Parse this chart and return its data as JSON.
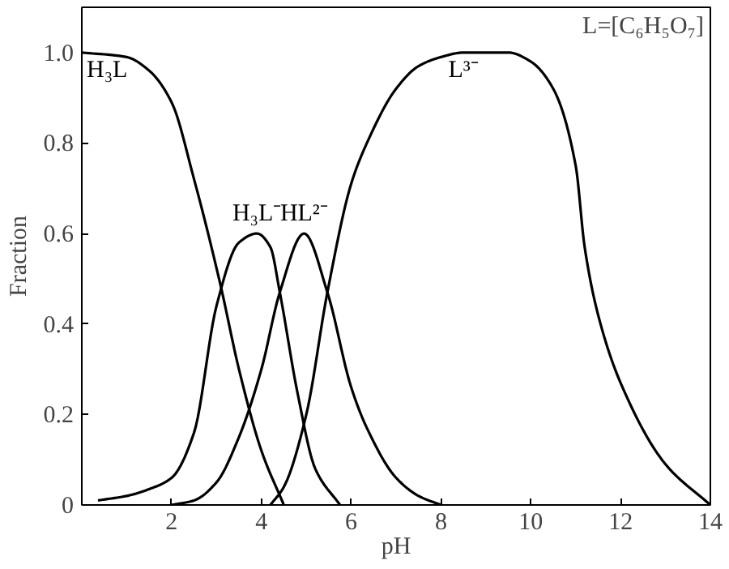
{
  "chart_data": {
    "type": "line",
    "xlabel": "pH",
    "ylabel": "Fraction",
    "xlim": [
      0,
      14
    ],
    "ylim": [
      0,
      1.1
    ],
    "xticks": [
      2,
      4,
      6,
      8,
      10,
      12,
      14
    ],
    "yticks": [
      0,
      0.2,
      0.4,
      0.6,
      0.8,
      {
        "value": 1.0,
        "label": "1.0"
      }
    ],
    "grid": false,
    "marker": "none",
    "line_style": "solid",
    "series": [
      {
        "name": "H₃L",
        "color": "#000000",
        "x": [
          0,
          1,
          1.5,
          2,
          2.5,
          3.08,
          3.5,
          4,
          4.5
        ],
        "values": [
          1.0,
          0.99,
          0.96,
          0.89,
          0.72,
          0.49,
          0.3,
          0.12,
          0
        ]
      },
      {
        "name": "H₃L⁻",
        "color": "#000000",
        "x": [
          0.36,
          1,
          1.5,
          2,
          2.5,
          3,
          3.5,
          3.9,
          4.2,
          4.41,
          4.8,
          5.2,
          5.75
        ],
        "values": [
          0.01,
          0.02,
          0.035,
          0.06,
          0.16,
          0.44,
          0.58,
          0.6,
          0.57,
          0.47,
          0.25,
          0.08,
          0
        ]
      },
      {
        "name": "HL²⁻",
        "color": "#000000",
        "x": [
          2,
          2.5,
          3,
          3.5,
          4,
          4.41,
          4.95,
          5.47,
          6,
          6.35,
          7,
          7.5,
          8
        ],
        "values": [
          0,
          0.01,
          0.05,
          0.15,
          0.3,
          0.47,
          0.6,
          0.47,
          0.26,
          0.17,
          0.06,
          0.02,
          0
        ]
      },
      {
        "name": "L³⁻",
        "color": "#000000",
        "x": [
          4.2,
          4.5,
          5,
          5.47,
          6,
          6.35,
          7,
          7.5,
          8,
          8.5,
          9.5,
          10,
          10.5,
          11,
          11.2,
          11.5,
          12,
          13,
          14
        ],
        "values": [
          0,
          0.04,
          0.2,
          0.47,
          0.71,
          0.8,
          0.92,
          0.97,
          0.99,
          1.0,
          1.0,
          0.98,
          0.92,
          0.75,
          0.57,
          0.42,
          0.27,
          0.09,
          0
        ]
      }
    ],
    "annotations": [
      "L=[C₆H₅O₇]"
    ]
  }
}
